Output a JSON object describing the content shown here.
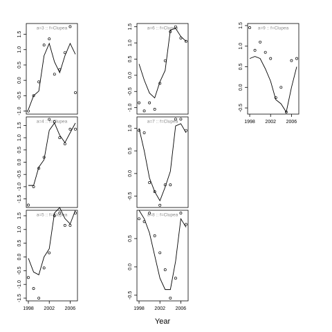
{
  "chart_data": [
    {
      "type": "line",
      "title": "a=3  ::  f=Clupea",
      "x": [
        1998,
        1999,
        2000,
        2001,
        2002,
        2003,
        2004,
        2005,
        2006,
        2007
      ],
      "points": [
        -1.0,
        -0.5,
        -0.05,
        1.15,
        1.35,
        0.2,
        0.35,
        0.9,
        1.75,
        -0.4
      ],
      "line": [
        -0.95,
        -0.5,
        -0.35,
        0.8,
        1.2,
        0.6,
        0.25,
        0.8,
        1.2,
        0.85
      ],
      "xlim": [
        1997.6,
        2007.4
      ],
      "ylim": [
        -1.1,
        1.85
      ],
      "yticks": [
        {
          "value": -1.0,
          "label": "-1.0"
        },
        -0.5,
        {
          "value": 0.0,
          "label": "0.0"
        },
        0.5,
        {
          "value": 1.0,
          "label": "1.0"
        },
        1.5
      ]
    },
    {
      "type": "line",
      "title": "a=4  ::  f=Clupea",
      "x": [
        1998,
        1999,
        2000,
        2001,
        2002,
        2003,
        2004,
        2005,
        2006,
        2007
      ],
      "points": [
        -1.75,
        -1.0,
        -0.25,
        0.2,
        1.75,
        1.65,
        1.0,
        0.75,
        1.35,
        1.35
      ],
      "line": [
        -0.95,
        -0.95,
        -0.2,
        0.1,
        1.3,
        1.6,
        1.1,
        0.8,
        1.2,
        1.6
      ],
      "xlim": [
        1997.6,
        2007.4
      ],
      "ylim": [
        -1.85,
        1.85
      ],
      "yticks": [
        -1.5,
        {
          "value": -1.0,
          "label": "-1.0"
        },
        -0.5,
        {
          "value": 0.0,
          "label": "0.0"
        },
        0.5,
        {
          "value": 1.0,
          "label": "1.0"
        },
        1.5
      ]
    },
    {
      "type": "line",
      "title": "a=5  ::  f=Clupea",
      "x": [
        1998,
        1999,
        2000,
        2001,
        2002,
        2003,
        2004,
        2005,
        2006,
        2007
      ],
      "points": [
        -0.75,
        -1.15,
        -1.5,
        -0.4,
        0.15,
        1.5,
        1.6,
        1.15,
        1.15,
        1.6
      ],
      "line": [
        -0.05,
        -0.55,
        -0.65,
        0.0,
        0.3,
        1.6,
        1.8,
        1.4,
        1.2,
        1.7
      ],
      "xlim": [
        1997.6,
        2007.4
      ],
      "ylim": [
        -1.6,
        1.7
      ],
      "xticks": [
        1998,
        2002,
        2006
      ],
      "yticks": [
        -1.5,
        {
          "value": -1.0,
          "label": "-1.0"
        },
        -0.5,
        {
          "value": 0.0,
          "label": "0.0"
        },
        0.5,
        {
          "value": 1.0,
          "label": "1.0"
        },
        1.5
      ]
    },
    {
      "type": "line",
      "title": "a=6  ::  f=Clupea",
      "x": [
        1998,
        1999,
        2000,
        2001,
        2002,
        2003,
        2004,
        2005,
        2006,
        2007
      ],
      "points": [
        -0.85,
        -1.1,
        -0.85,
        -1.05,
        -0.25,
        0.45,
        1.35,
        1.5,
        1.15,
        1.05
      ],
      "line": [
        0.35,
        -0.15,
        -0.55,
        -0.7,
        -0.2,
        0.15,
        1.4,
        1.45,
        1.2,
        1.05
      ],
      "xlim": [
        1997.6,
        2007.4
      ],
      "ylim": [
        -1.2,
        1.6
      ],
      "yticks": [
        {
          "value": -1.0,
          "label": "-1.0"
        },
        -0.5,
        {
          "value": 0.0,
          "label": "0.0"
        },
        0.5,
        {
          "value": 1.0,
          "label": "1.0"
        },
        1.5
      ]
    },
    {
      "type": "line",
      "title": "a=7  ::  f=Clupea",
      "x": [
        1998,
        1999,
        2000,
        2001,
        2002,
        2003,
        2004,
        2005,
        2006,
        2007
      ],
      "points": [
        0.95,
        0.9,
        -0.2,
        -0.4,
        -0.7,
        -0.25,
        -0.25,
        1.2,
        1.2,
        0.95
      ],
      "line": [
        1.0,
        0.5,
        -0.1,
        -0.4,
        -0.6,
        -0.3,
        0.05,
        1.05,
        1.1,
        0.9
      ],
      "xlim": [
        1997.6,
        2007.4
      ],
      "ylim": [
        -0.75,
        1.25
      ],
      "yticks": [
        -0.5,
        {
          "value": 0.0,
          "label": "0.0"
        },
        0.5,
        {
          "value": 1.0,
          "label": "1.0"
        }
      ]
    },
    {
      "type": "line",
      "title": "a=8  ::  f=Clupea",
      "x": [
        1998,
        1999,
        2000,
        2001,
        2002,
        2003,
        2004,
        2005,
        2006,
        2007
      ],
      "points": [
        0.85,
        0.8,
        0.95,
        0.55,
        0.25,
        -0.05,
        -0.55,
        -0.2,
        0.95,
        0.75
      ],
      "line": [
        1.0,
        0.85,
        0.6,
        0.2,
        -0.2,
        -0.4,
        -0.4,
        0.1,
        0.85,
        0.7
      ],
      "xlim": [
        1997.6,
        2007.4
      ],
      "ylim": [
        -0.6,
        1.0
      ],
      "xticks": [
        1998,
        2002,
        2006
      ],
      "xlabel": "Year",
      "yticks": [
        -0.5,
        {
          "value": 0.0,
          "label": "0.0"
        },
        0.5
      ]
    },
    {
      "type": "line",
      "title": "a=9  ::  f=Clupea",
      "x": [
        1998,
        1999,
        2000,
        2001,
        2002,
        2003,
        2004,
        2005,
        2006,
        2007
      ],
      "points": [
        1.45,
        0.9,
        1.1,
        0.85,
        0.7,
        -0.25,
        0.0,
        -0.6,
        0.65,
        0.7
      ],
      "line": [
        0.7,
        0.75,
        0.7,
        0.45,
        0.15,
        -0.3,
        -0.4,
        -0.6,
        0.0,
        0.5
      ],
      "xlim": [
        1997.6,
        2007.4
      ],
      "ylim": [
        -0.65,
        1.55
      ],
      "xticks": [
        1998,
        2002,
        2006
      ],
      "yticks": [
        -0.5,
        {
          "value": 0.0,
          "label": "0.0"
        },
        0.5,
        {
          "value": 1.0,
          "label": "1.0"
        },
        1.5
      ]
    }
  ]
}
